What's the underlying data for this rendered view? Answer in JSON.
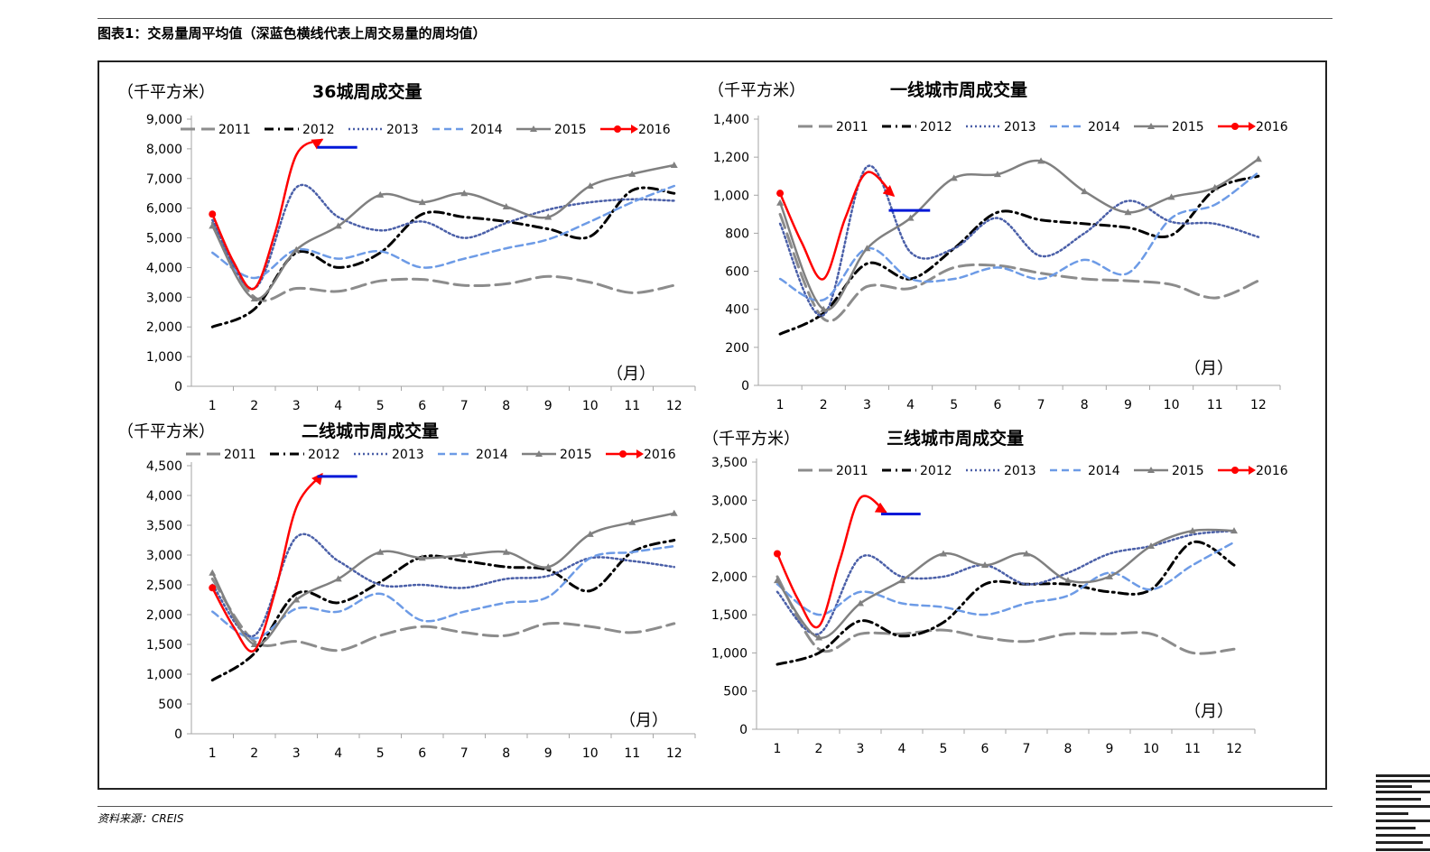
{
  "figure_title": "图表1：交易量周平均值（深蓝色横线代表上周交易量的周均值）",
  "source": "资料来源：CREIS",
  "colors": {
    "2011": "#8c8c8c",
    "2012": "#000000",
    "2013": "#4a5fa8",
    "2014": "#6d9be6",
    "2015": "#808080",
    "2016": "#ff0000",
    "lastweek": "#0018d8"
  },
  "chart_data": [
    {
      "type": "line",
      "title": "36城周成交量",
      "ylabel": "（千平方米）",
      "xlabel": "（月）",
      "x": [
        1,
        2,
        3,
        4,
        5,
        6,
        7,
        8,
        9,
        10,
        11,
        12
      ],
      "x_ticks": [
        "1",
        "2",
        "3",
        "4",
        "5",
        "6",
        "7",
        "8",
        "9",
        "10",
        "11",
        "12"
      ],
      "ylim": [
        0,
        9000
      ],
      "y_ticks": [
        "0",
        "1,000",
        "2,000",
        "3,000",
        "4,000",
        "5,000",
        "6,000",
        "7,000",
        "8,000",
        "9,000"
      ],
      "series": [
        {
          "name": "2011",
          "values": [
            5500,
            3000,
            3300,
            3200,
            3550,
            3600,
            3400,
            3450,
            3700,
            3500,
            3150,
            3400
          ]
        },
        {
          "name": "2012",
          "values": [
            2000,
            2600,
            4500,
            4000,
            4500,
            5800,
            5700,
            5550,
            5300,
            5050,
            6600,
            6500
          ]
        },
        {
          "name": "2013",
          "values": [
            5600,
            3300,
            6700,
            5700,
            5250,
            5550,
            5000,
            5500,
            5950,
            6200,
            6300,
            6250
          ]
        },
        {
          "name": "2014",
          "values": [
            4500,
            3650,
            4600,
            4300,
            4550,
            4000,
            4300,
            4650,
            4950,
            5550,
            6200,
            6750
          ]
        },
        {
          "name": "2015",
          "values": [
            5400,
            2950,
            4600,
            5400,
            6450,
            6200,
            6500,
            6050,
            5700,
            6750,
            7150,
            7450
          ]
        },
        {
          "name": "2016",
          "x": [
            1,
            1.5,
            2,
            2.5,
            3,
            3.6
          ],
          "values": [
            5800,
            4200,
            3300,
            5200,
            7800,
            8300
          ]
        }
      ],
      "last_week": {
        "x": [
          3.5,
          4.45
        ],
        "value": 8050
      }
    },
    {
      "type": "line",
      "title": "一线城市周成交量",
      "ylabel": "（千平方米）",
      "xlabel": "（月）",
      "x": [
        1,
        2,
        3,
        4,
        5,
        6,
        7,
        8,
        9,
        10,
        11,
        12
      ],
      "x_ticks": [
        "1",
        "2",
        "3",
        "4",
        "5",
        "6",
        "7",
        "8",
        "9",
        "10",
        "11",
        "12"
      ],
      "ylim": [
        0,
        1400
      ],
      "y_ticks": [
        "0",
        "200",
        "400",
        "600",
        "800",
        "1,000",
        "1,200",
        "1,400"
      ],
      "series": [
        {
          "name": "2011",
          "values": [
            900,
            350,
            520,
            510,
            620,
            630,
            590,
            560,
            550,
            530,
            460,
            550
          ]
        },
        {
          "name": "2012",
          "values": [
            270,
            380,
            640,
            560,
            720,
            910,
            870,
            850,
            830,
            790,
            1030,
            1100
          ]
        },
        {
          "name": "2013",
          "values": [
            850,
            370,
            1150,
            700,
            720,
            880,
            680,
            800,
            970,
            860,
            850,
            780
          ]
        },
        {
          "name": "2014",
          "values": [
            560,
            450,
            720,
            560,
            560,
            620,
            560,
            660,
            590,
            880,
            950,
            1120
          ]
        },
        {
          "name": "2015",
          "values": [
            960,
            400,
            720,
            880,
            1090,
            1110,
            1180,
            1020,
            910,
            990,
            1040,
            1190
          ]
        },
        {
          "name": "2016",
          "x": [
            1,
            1.5,
            2,
            2.5,
            3,
            3.6
          ],
          "values": [
            1010,
            750,
            560,
            880,
            1120,
            1000
          ]
        }
      ],
      "last_week": {
        "x": [
          3.5,
          4.45
        ],
        "value": 920
      }
    },
    {
      "type": "line",
      "title": "二线城市周成交量",
      "ylabel": "（千平方米）",
      "xlabel": "（月）",
      "x": [
        1,
        2,
        3,
        4,
        5,
        6,
        7,
        8,
        9,
        10,
        11,
        12
      ],
      "x_ticks": [
        "1",
        "2",
        "3",
        "4",
        "5",
        "6",
        "7",
        "8",
        "9",
        "10",
        "11",
        "12"
      ],
      "ylim": [
        0,
        4500
      ],
      "y_ticks": [
        "0",
        "500",
        "1,000",
        "1,500",
        "2,000",
        "2,500",
        "3,000",
        "3,500",
        "4,000",
        "4,500"
      ],
      "series": [
        {
          "name": "2011",
          "values": [
            2600,
            1550,
            1550,
            1400,
            1650,
            1800,
            1700,
            1650,
            1850,
            1800,
            1700,
            1850
          ]
        },
        {
          "name": "2012",
          "values": [
            900,
            1350,
            2350,
            2200,
            2550,
            2970,
            2900,
            2800,
            2750,
            2400,
            3050,
            3250
          ]
        },
        {
          "name": "2013",
          "values": [
            2500,
            1650,
            3300,
            2900,
            2500,
            2500,
            2450,
            2600,
            2650,
            2950,
            2900,
            2800
          ]
        },
        {
          "name": "2014",
          "values": [
            2050,
            1600,
            2100,
            2050,
            2350,
            1900,
            2050,
            2200,
            2300,
            2950,
            3050,
            3150
          ]
        },
        {
          "name": "2015",
          "values": [
            2700,
            1500,
            2250,
            2600,
            3050,
            2950,
            3000,
            3050,
            2800,
            3350,
            3550,
            3700
          ]
        },
        {
          "name": "2016",
          "x": [
            1,
            1.5,
            2,
            2.5,
            3,
            3.6
          ],
          "values": [
            2450,
            1800,
            1400,
            2400,
            3800,
            4350
          ]
        }
      ],
      "last_week": {
        "x": [
          3.5,
          4.45
        ],
        "value": 4320
      }
    },
    {
      "type": "line",
      "title": "三线城市周成交量",
      "ylabel": "（千平方米）",
      "xlabel": "（月）",
      "x": [
        1,
        2,
        3,
        4,
        5,
        6,
        7,
        8,
        9,
        10,
        11,
        12
      ],
      "x_ticks": [
        "1",
        "2",
        "3",
        "4",
        "5",
        "6",
        "7",
        "8",
        "9",
        "10",
        "11",
        "12"
      ],
      "ylim": [
        0,
        3500
      ],
      "y_ticks": [
        "0",
        "500",
        "1,000",
        "1,500",
        "2,000",
        "2,500",
        "3,000",
        "3,500"
      ],
      "series": [
        {
          "name": "2011",
          "values": [
            2000,
            1050,
            1250,
            1250,
            1300,
            1200,
            1150,
            1250,
            1250,
            1250,
            1000,
            1050
          ]
        },
        {
          "name": "2012",
          "values": [
            850,
            1000,
            1420,
            1220,
            1400,
            1900,
            1900,
            1900,
            1800,
            1830,
            2450,
            2150
          ]
        },
        {
          "name": "2013",
          "values": [
            1800,
            1250,
            2250,
            2000,
            2000,
            2150,
            1900,
            2050,
            2300,
            2400,
            2550,
            2600
          ]
        },
        {
          "name": "2014",
          "values": [
            1900,
            1500,
            1800,
            1650,
            1600,
            1500,
            1650,
            1750,
            2050,
            1830,
            2150,
            2450
          ]
        },
        {
          "name": "2015",
          "values": [
            1950,
            1200,
            1650,
            1950,
            2300,
            2150,
            2300,
            1950,
            2000,
            2400,
            2600,
            2600
          ]
        },
        {
          "name": "2016",
          "x": [
            1,
            1.5,
            2,
            2.5,
            3,
            3.6
          ],
          "values": [
            2300,
            1700,
            1350,
            2200,
            3030,
            2850
          ]
        }
      ],
      "last_week": {
        "x": [
          3.5,
          4.45
        ],
        "value": 2820
      }
    }
  ]
}
